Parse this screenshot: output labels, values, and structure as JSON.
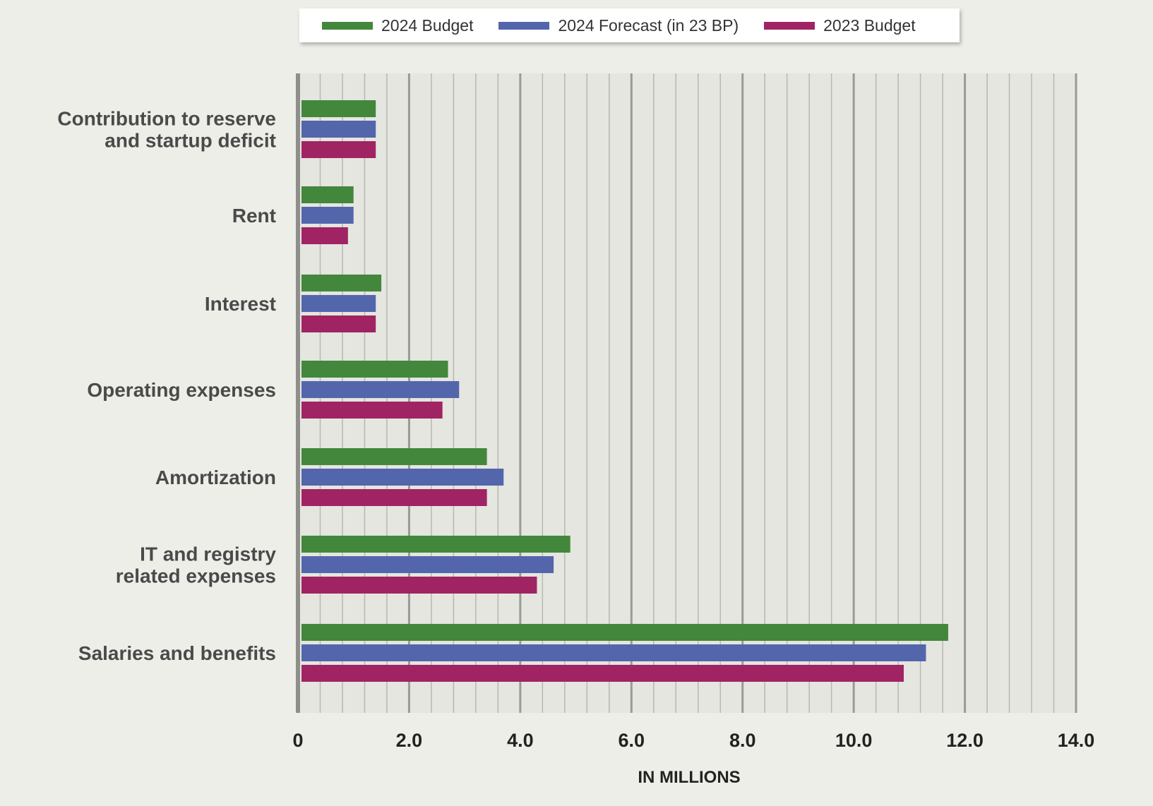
{
  "chart_data": {
    "type": "bar",
    "orientation": "horizontal",
    "categories": [
      [
        "Contribution to reserve",
        "and startup deficit"
      ],
      [
        "Rent"
      ],
      [
        "Interest"
      ],
      [
        "Operating expenses"
      ],
      [
        "Amortization"
      ],
      [
        "IT and registry",
        "related expenses"
      ],
      [
        "Salaries and benefits"
      ]
    ],
    "series": [
      {
        "name": "2024 Budget",
        "color": "#43873c",
        "values": [
          1.4,
          1.0,
          1.5,
          2.7,
          3.4,
          4.9,
          11.7
        ]
      },
      {
        "name": "2024 Forecast (in 23 BP)",
        "color": "#5366ac",
        "values": [
          1.4,
          1.0,
          1.4,
          2.9,
          3.7,
          4.6,
          11.3
        ]
      },
      {
        "name": "2023 Budget",
        "color": "#a02463",
        "values": [
          1.4,
          0.9,
          1.4,
          2.6,
          3.4,
          4.3,
          10.9
        ]
      }
    ],
    "xlim": [
      0,
      14
    ],
    "xticks": [
      0,
      2,
      4,
      6,
      8,
      10,
      12,
      14
    ],
    "xtick_labels": [
      "0",
      "2.0",
      "4.0",
      "6.0",
      "8.0",
      "10.0",
      "12.0",
      "14.0"
    ],
    "minor_step": 0.4,
    "xlabel": "IN MILLIONS",
    "ylabel": "",
    "title": "",
    "grid": true,
    "legend_position": "top-center"
  }
}
